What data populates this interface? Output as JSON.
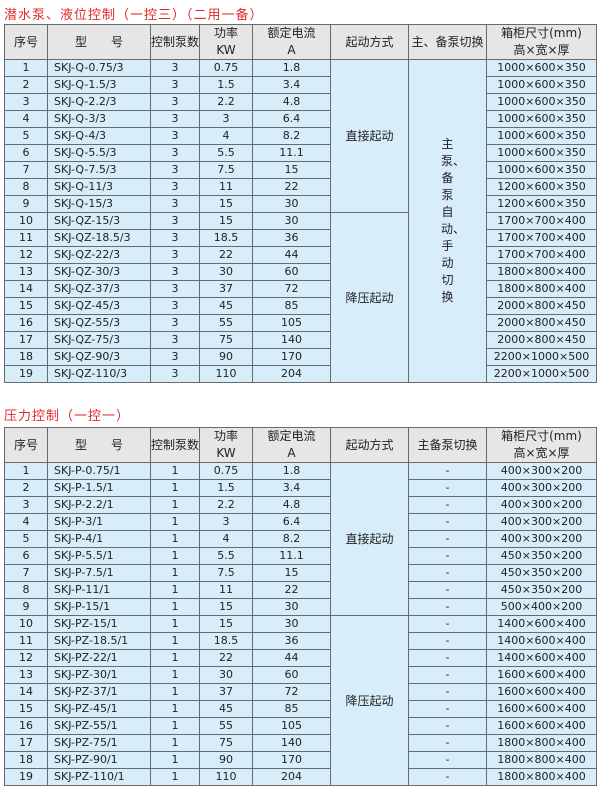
{
  "table1": {
    "title": "潜水泵、液位控制（一控三）（二用一备）",
    "headers": {
      "no": "序号",
      "model": "型　　号",
      "pumps": "控制泵数",
      "power": "功率",
      "power_unit": "KW",
      "current": "额定电流",
      "current_unit": "A",
      "start": "起动方式",
      "switch": "主、备泵切换",
      "size": "箱柜尺寸(mm)",
      "size_sub": "高×宽×厚"
    },
    "start_direct": "直接起动",
    "start_reduced": "降压起动",
    "switch_text": "主泵、备泵自动、手动切换",
    "rows": [
      [
        "1",
        "SKJ-Q-0.75/3",
        "3",
        "0.75",
        "1.8",
        "1000×600×350"
      ],
      [
        "2",
        "SKJ-Q-1.5/3",
        "3",
        "1.5",
        "3.4",
        "1000×600×350"
      ],
      [
        "3",
        "SKJ-Q-2.2/3",
        "3",
        "2.2",
        "4.8",
        "1000×600×350"
      ],
      [
        "4",
        "SKJ-Q-3/3",
        "3",
        "3",
        "6.4",
        "1000×600×350"
      ],
      [
        "5",
        "SKJ-Q-4/3",
        "3",
        "4",
        "8.2",
        "1000×600×350"
      ],
      [
        "6",
        "SKJ-Q-5.5/3",
        "3",
        "5.5",
        "11.1",
        "1000×600×350"
      ],
      [
        "7",
        "SKJ-Q-7.5/3",
        "3",
        "7.5",
        "15",
        "1000×600×350"
      ],
      [
        "8",
        "SKJ-Q-11/3",
        "3",
        "11",
        "22",
        "1200×600×350"
      ],
      [
        "9",
        "SKJ-Q-15/3",
        "3",
        "15",
        "30",
        "1200×600×350"
      ],
      [
        "10",
        "SKJ-QZ-15/3",
        "3",
        "15",
        "30",
        "1700×700×400"
      ],
      [
        "11",
        "SKJ-QZ-18.5/3",
        "3",
        "18.5",
        "36",
        "1700×700×400"
      ],
      [
        "12",
        "SKJ-QZ-22/3",
        "3",
        "22",
        "44",
        "1700×700×400"
      ],
      [
        "13",
        "SKJ-QZ-30/3",
        "3",
        "30",
        "60",
        "1800×800×400"
      ],
      [
        "14",
        "SKJ-QZ-37/3",
        "3",
        "37",
        "72",
        "1800×800×400"
      ],
      [
        "15",
        "SKJ-QZ-45/3",
        "3",
        "45",
        "85",
        "2000×800×450"
      ],
      [
        "16",
        "SKJ-QZ-55/3",
        "3",
        "55",
        "105",
        "2000×800×450"
      ],
      [
        "17",
        "SKJ-QZ-75/3",
        "3",
        "75",
        "140",
        "2000×800×450"
      ],
      [
        "18",
        "SKJ-QZ-90/3",
        "3",
        "90",
        "170",
        "2200×1000×500"
      ],
      [
        "19",
        "SKJ-QZ-110/3",
        "3",
        "110",
        "204",
        "2200×1000×500"
      ]
    ]
  },
  "table2": {
    "title": "压力控制（一控一）",
    "headers": {
      "no": "序号",
      "model": "型　　号",
      "pumps": "控制泵数",
      "power": "功率",
      "power_unit": "KW",
      "current": "额定电流",
      "current_unit": "A",
      "start": "起动方式",
      "switch": "主备泵切换",
      "size": "箱柜尺寸(mm)",
      "size_sub": "高×宽×厚"
    },
    "start_direct": "直接起动",
    "start_reduced": "降压起动",
    "switch_text": "-",
    "rows": [
      [
        "1",
        "SKJ-P-0.75/1",
        "1",
        "0.75",
        "1.8",
        "400×300×200"
      ],
      [
        "2",
        "SKJ-P-1.5/1",
        "1",
        "1.5",
        "3.4",
        "400×300×200"
      ],
      [
        "3",
        "SKJ-P-2.2/1",
        "1",
        "2.2",
        "4.8",
        "400×300×200"
      ],
      [
        "4",
        "SKJ-P-3/1",
        "1",
        "3",
        "6.4",
        "400×300×200"
      ],
      [
        "5",
        "SKJ-P-4/1",
        "1",
        "4",
        "8.2",
        "400×300×200"
      ],
      [
        "6",
        "SKJ-P-5.5/1",
        "1",
        "5.5",
        "11.1",
        "450×350×200"
      ],
      [
        "7",
        "SKJ-P-7.5/1",
        "1",
        "7.5",
        "15",
        "450×350×200"
      ],
      [
        "8",
        "SKJ-P-11/1",
        "1",
        "11",
        "22",
        "450×350×200"
      ],
      [
        "9",
        "SKJ-P-15/1",
        "1",
        "15",
        "30",
        "500×400×200"
      ],
      [
        "10",
        "SKJ-PZ-15/1",
        "1",
        "15",
        "30",
        "1400×600×400"
      ],
      [
        "11",
        "SKJ-PZ-18.5/1",
        "1",
        "18.5",
        "36",
        "1400×600×400"
      ],
      [
        "12",
        "SKJ-PZ-22/1",
        "1",
        "22",
        "44",
        "1400×600×400"
      ],
      [
        "13",
        "SKJ-PZ-30/1",
        "1",
        "30",
        "60",
        "1600×600×400"
      ],
      [
        "14",
        "SKJ-PZ-37/1",
        "1",
        "37",
        "72",
        "1600×600×400"
      ],
      [
        "15",
        "SKJ-PZ-45/1",
        "1",
        "45",
        "85",
        "1600×600×400"
      ],
      [
        "16",
        "SKJ-PZ-55/1",
        "1",
        "55",
        "105",
        "1600×600×400"
      ],
      [
        "17",
        "SKJ-PZ-75/1",
        "1",
        "75",
        "140",
        "1800×800×400"
      ],
      [
        "18",
        "SKJ-PZ-90/1",
        "1",
        "90",
        "170",
        "1800×800×400"
      ],
      [
        "19",
        "SKJ-PZ-110/1",
        "1",
        "110",
        "204",
        "1800×800×400"
      ]
    ]
  }
}
